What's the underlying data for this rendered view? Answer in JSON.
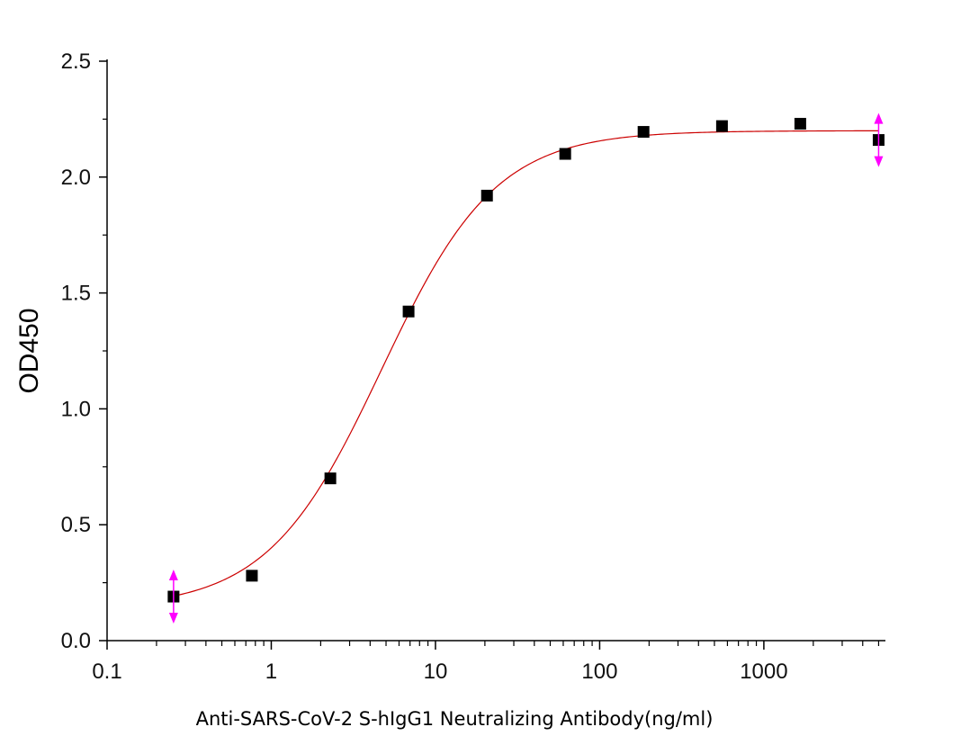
{
  "chart_data": {
    "type": "scatter",
    "title": "",
    "xlabel": "Anti-SARS-CoV-2 S-hIgG1 Neutralizing Antibody(ng/ml)",
    "ylabel": "OD450",
    "x_scale": "log",
    "xlim": [
      0.1,
      5500
    ],
    "ylim": [
      0,
      2.5
    ],
    "x_ticks": [
      0.1,
      1,
      10,
      100,
      1000
    ],
    "x_tick_labels": [
      "0.1",
      "1",
      "10",
      "100",
      "1000"
    ],
    "y_ticks": [
      0,
      0.5,
      1.0,
      1.5,
      2.0,
      2.5
    ],
    "y_tick_labels": [
      "0.0",
      "0.5",
      "1.0",
      "1.5",
      "2.0",
      "2.5"
    ],
    "grid": false,
    "legend": "none",
    "series": [
      {
        "kind": "points",
        "marker": "square",
        "color": "#000000",
        "x": [
          0.254,
          0.762,
          2.29,
          6.86,
          20.6,
          61.7,
          185,
          556,
          1667,
          5000
        ],
        "y": [
          0.19,
          0.28,
          0.7,
          1.42,
          1.92,
          2.1,
          2.195,
          2.22,
          2.23,
          2.16
        ]
      },
      {
        "kind": "fit",
        "model": "4PL",
        "color": "#cc0000",
        "params": {
          "bottom": 0.14,
          "top": 2.2,
          "ec50": 4.7,
          "hill": 1.25
        }
      }
    ],
    "annotations": [
      {
        "type": "double-arrow",
        "color": "#ff00ff",
        "x": 0.254,
        "y": 0.19
      },
      {
        "type": "double-arrow",
        "color": "#ff00ff",
        "x": 5000,
        "y": 2.16
      }
    ]
  }
}
